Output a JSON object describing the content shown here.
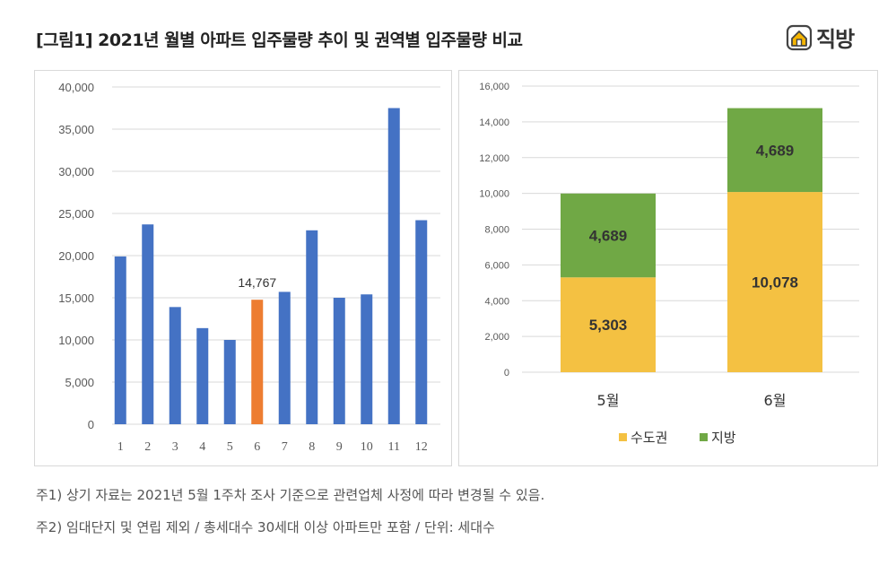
{
  "header": {
    "title": "[그림1] 2021년 월별 아파트 입주물량 추이 및 권역별 입주물량 비교",
    "logo_text": "직방",
    "logo_icon": "house-logo-icon"
  },
  "colors": {
    "bar_blue": "#4472C4",
    "bar_highlight": "#ED7D31",
    "capital": "#F4C142",
    "regional": "#70A845",
    "grid": "#d9d9d9",
    "axis_text": "#595959"
  },
  "chart_data": [
    {
      "type": "bar",
      "title": "",
      "categories": [
        "1",
        "2",
        "3",
        "4",
        "5",
        "6",
        "7",
        "8",
        "9",
        "10",
        "11",
        "12"
      ],
      "values": [
        19900,
        23700,
        13900,
        11400,
        10000,
        14767,
        15700,
        23000,
        15000,
        15400,
        37500,
        24200
      ],
      "highlight_index": 5,
      "data_labels": {
        "5": "14,767"
      },
      "ylim": [
        0,
        40000
      ],
      "yticks": [
        0,
        5000,
        10000,
        15000,
        20000,
        25000,
        30000,
        35000,
        40000
      ],
      "ytick_labels": [
        "0",
        "5,000",
        "10,000",
        "15,000",
        "20,000",
        "25,000",
        "30,000",
        "35,000",
        "40,000"
      ],
      "grid": true
    },
    {
      "type": "bar",
      "stacked": true,
      "categories": [
        "5월",
        "6월"
      ],
      "series": [
        {
          "name": "수도권",
          "values": [
            5303,
            10078
          ],
          "labels": [
            "5,303",
            "10,078"
          ]
        },
        {
          "name": "지방",
          "values": [
            4689,
            4689
          ],
          "labels": [
            "4,689",
            "4,689"
          ]
        }
      ],
      "ylim": [
        0,
        16000
      ],
      "yticks": [
        0,
        2000,
        4000,
        6000,
        8000,
        10000,
        12000,
        14000,
        16000
      ],
      "ytick_labels": [
        "0",
        "2,000",
        "4,000",
        "6,000",
        "8,000",
        "10,000",
        "12,000",
        "14,000",
        "16,000"
      ],
      "legend": "bottom",
      "grid": true
    }
  ],
  "notes": {
    "note1": "주1) 상기 자료는 2021년 5월 1주차 조사 기준으로 관련업체 사정에 따라 변경될 수 있음.",
    "note2": "주2) 임대단지 및 연립 제외 / 총세대수 30세대 이상 아파트만 포함 / 단위: 세대수"
  }
}
